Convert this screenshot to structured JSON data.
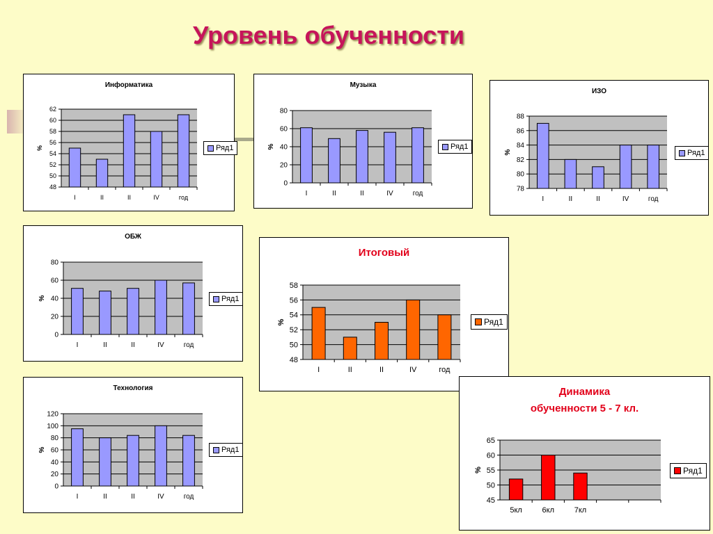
{
  "page": {
    "title": "Уровень обученности"
  },
  "colors": {
    "blue": "#9999ff",
    "orange": "#ff6600",
    "red": "#ff0000",
    "plot_bg": "#c0c0c0"
  },
  "chart_data": [
    {
      "id": "informatika",
      "type": "bar",
      "title": "Информатика",
      "categories": [
        "I",
        "II",
        "II",
        "IV",
        "год"
      ],
      "series": [
        {
          "name": "Ряд1",
          "values": [
            55,
            53,
            61,
            58,
            61
          ]
        }
      ],
      "ylabel": "%",
      "ylim": [
        48,
        62
      ],
      "yticks": [
        48,
        50,
        52,
        54,
        56,
        58,
        60,
        62
      ],
      "grid": true,
      "legend": "right",
      "color": "#9999ff"
    },
    {
      "id": "muzyka",
      "type": "bar",
      "title": "Музыка",
      "categories": [
        "I",
        "II",
        "II",
        "IV",
        "год"
      ],
      "series": [
        {
          "name": "Ряд1",
          "values": [
            61,
            49,
            58,
            56,
            61
          ]
        }
      ],
      "ylabel": "%",
      "ylim": [
        0,
        80
      ],
      "yticks": [
        0,
        20,
        40,
        60,
        80
      ],
      "grid": true,
      "legend": "right",
      "color": "#9999ff"
    },
    {
      "id": "izo",
      "type": "bar",
      "title": "ИЗО",
      "categories": [
        "I",
        "II",
        "II",
        "IV",
        "год"
      ],
      "series": [
        {
          "name": "Ряд1",
          "values": [
            87,
            82,
            81,
            84,
            84
          ]
        }
      ],
      "ylabel": "%",
      "ylim": [
        78,
        88
      ],
      "yticks": [
        78,
        80,
        82,
        84,
        86,
        88
      ],
      "grid": true,
      "legend": "right",
      "color": "#9999ff"
    },
    {
      "id": "obzh",
      "type": "bar",
      "title": "ОБЖ",
      "categories": [
        "I",
        "II",
        "II",
        "IV",
        "год"
      ],
      "series": [
        {
          "name": "Ряд1",
          "values": [
            51,
            48,
            51,
            60,
            57
          ]
        }
      ],
      "ylabel": "%",
      "ylim": [
        0,
        80
      ],
      "yticks": [
        0,
        20,
        40,
        60,
        80
      ],
      "grid": true,
      "legend": "right",
      "color": "#9999ff"
    },
    {
      "id": "itogovy",
      "type": "bar",
      "title": "Итоговый",
      "categories": [
        "I",
        "II",
        "II",
        "IV",
        "год"
      ],
      "series": [
        {
          "name": "Ряд1",
          "values": [
            55,
            51,
            53,
            56,
            54
          ]
        }
      ],
      "ylabel": "%",
      "ylim": [
        48,
        58
      ],
      "yticks": [
        48,
        50,
        52,
        54,
        56,
        58
      ],
      "grid": true,
      "legend": "right",
      "color": "#ff6600"
    },
    {
      "id": "tekhnologiya",
      "type": "bar",
      "title": "Технология",
      "categories": [
        "I",
        "II",
        "II",
        "IV",
        "год"
      ],
      "series": [
        {
          "name": "Ряд1",
          "values": [
            95,
            80,
            84,
            100,
            84
          ]
        }
      ],
      "ylabel": "%",
      "ylim": [
        0,
        120
      ],
      "yticks": [
        0,
        20,
        40,
        60,
        80,
        100,
        120
      ],
      "grid": true,
      "legend": "right",
      "color": "#9999ff"
    },
    {
      "id": "dinamika",
      "type": "bar",
      "title": "Динамика",
      "subtitle": "обученности 5 - 7 кл.",
      "categories": [
        "5кл",
        "6кл",
        "7кл",
        "",
        ""
      ],
      "series": [
        {
          "name": "Ряд1",
          "values": [
            52,
            60,
            54,
            null,
            null
          ]
        }
      ],
      "ylabel": "%",
      "ylim": [
        45,
        65
      ],
      "yticks": [
        45,
        50,
        55,
        60,
        65
      ],
      "grid": true,
      "legend": "right",
      "color": "#ff0000"
    }
  ]
}
